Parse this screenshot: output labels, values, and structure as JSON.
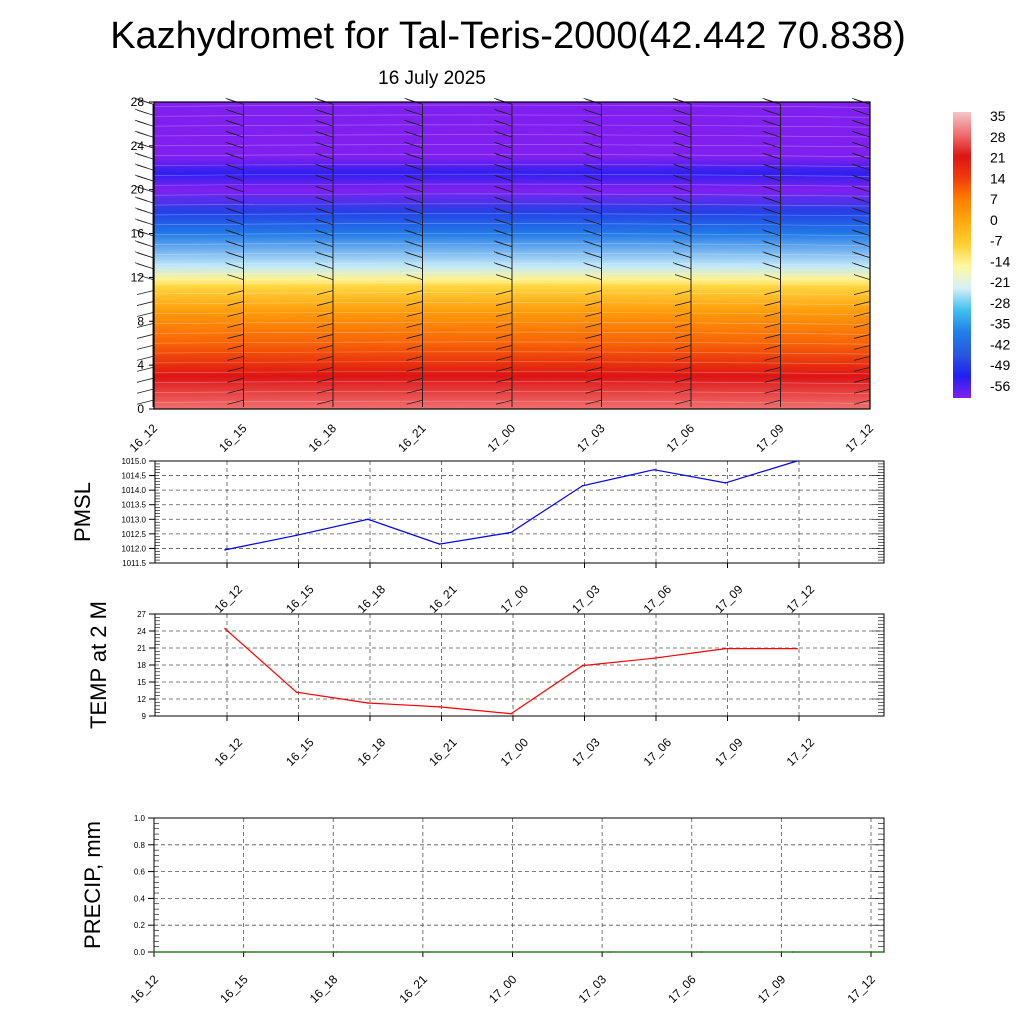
{
  "title": "Kazhydromet for Tal-Teris-2000(42.442 70.838)",
  "subtitle": "16 July 2025",
  "chart_data": [
    {
      "type": "heatmap",
      "name": "temperature-cross-section",
      "x_ticks": [
        "16_12",
        "16_15",
        "16_18",
        "16_21",
        "17_00",
        "17_03",
        "17_06",
        "17_09",
        "17_12"
      ],
      "ylim": [
        0,
        28
      ],
      "y_ticks": [
        0,
        4,
        8,
        12,
        16,
        20,
        24,
        28
      ],
      "colorbar": {
        "labels": [
          "35",
          "28",
          "21",
          "14",
          "7",
          "0",
          "-7",
          "-14",
          "-21",
          "-28",
          "-35",
          "-42",
          "-49",
          "-56"
        ],
        "colors": [
          "#f4c6c6",
          "#f07070",
          "#dd1414",
          "#f03c0c",
          "#ff8000",
          "#ffaa10",
          "#ffd030",
          "#fff8a0",
          "#d8f0f8",
          "#40c0f0",
          "#2080e8",
          "#2858e0",
          "#2020f0",
          "#8020f0"
        ]
      },
      "profile": [
        {
          "level": 0,
          "value": 28
        },
        {
          "level": 3,
          "value": 21
        },
        {
          "level": 6,
          "value": 10
        },
        {
          "level": 9,
          "value": 2
        },
        {
          "level": 11.2,
          "value": -8
        },
        {
          "level": 11.8,
          "value": -13
        },
        {
          "level": 13,
          "value": -22
        },
        {
          "level": 16,
          "value": -36
        },
        {
          "level": 18,
          "value": -45
        },
        {
          "level": 20,
          "value": -57
        },
        {
          "level": 21.5,
          "value": -50
        },
        {
          "level": 23,
          "value": -60
        },
        {
          "level": 28,
          "value": -62
        }
      ],
      "grid": false,
      "wind_barbs": true
    },
    {
      "type": "line",
      "name": "pmsl",
      "ylabel": "PMSL",
      "x": [
        "16_12",
        "16_15",
        "16_18",
        "16_21",
        "17_00",
        "17_03",
        "17_06",
        "17_09",
        "17_12"
      ],
      "series": [
        {
          "values": [
            1011.95,
            1012.45,
            1013.0,
            1012.15,
            1012.55,
            1014.15,
            1014.7,
            1014.25,
            1015.0
          ],
          "color": "#0000ff"
        }
      ],
      "ylim": [
        1011.5,
        1015.0
      ],
      "y_ticks": [
        "1011.5",
        "1012.0",
        "1012.5",
        "1013.0",
        "1013.5",
        "1014.0",
        "1014.5",
        "1015.0"
      ],
      "grid": true
    },
    {
      "type": "line",
      "name": "temp-2m",
      "ylabel": "TEMP at 2 M",
      "x": [
        "16_12",
        "16_15",
        "16_18",
        "16_21",
        "17_00",
        "17_03",
        "17_06",
        "17_09",
        "17_12"
      ],
      "series": [
        {
          "values": [
            24.4,
            13.2,
            11.3,
            10.6,
            9.4,
            17.9,
            19.2,
            20.9,
            20.9
          ],
          "color": "#ff0000"
        }
      ],
      "ylim": [
        9,
        27
      ],
      "y_ticks": [
        "9",
        "12",
        "15",
        "18",
        "21",
        "24",
        "27"
      ],
      "grid": true
    },
    {
      "type": "line",
      "name": "precip",
      "ylabel": "PRECIP, mm",
      "x": [
        "16_12",
        "16_15",
        "16_18",
        "16_21",
        "17_00",
        "17_03",
        "17_06",
        "17_09",
        "17_12"
      ],
      "series": [
        {
          "values": [
            0,
            0,
            0,
            0,
            0,
            0,
            0,
            0,
            0
          ],
          "color": "#006400"
        }
      ],
      "ylim": [
        0,
        1.0
      ],
      "y_ticks": [
        "0.0",
        "0.2",
        "0.4",
        "0.6",
        "0.8",
        "1.0"
      ],
      "grid": true
    }
  ]
}
